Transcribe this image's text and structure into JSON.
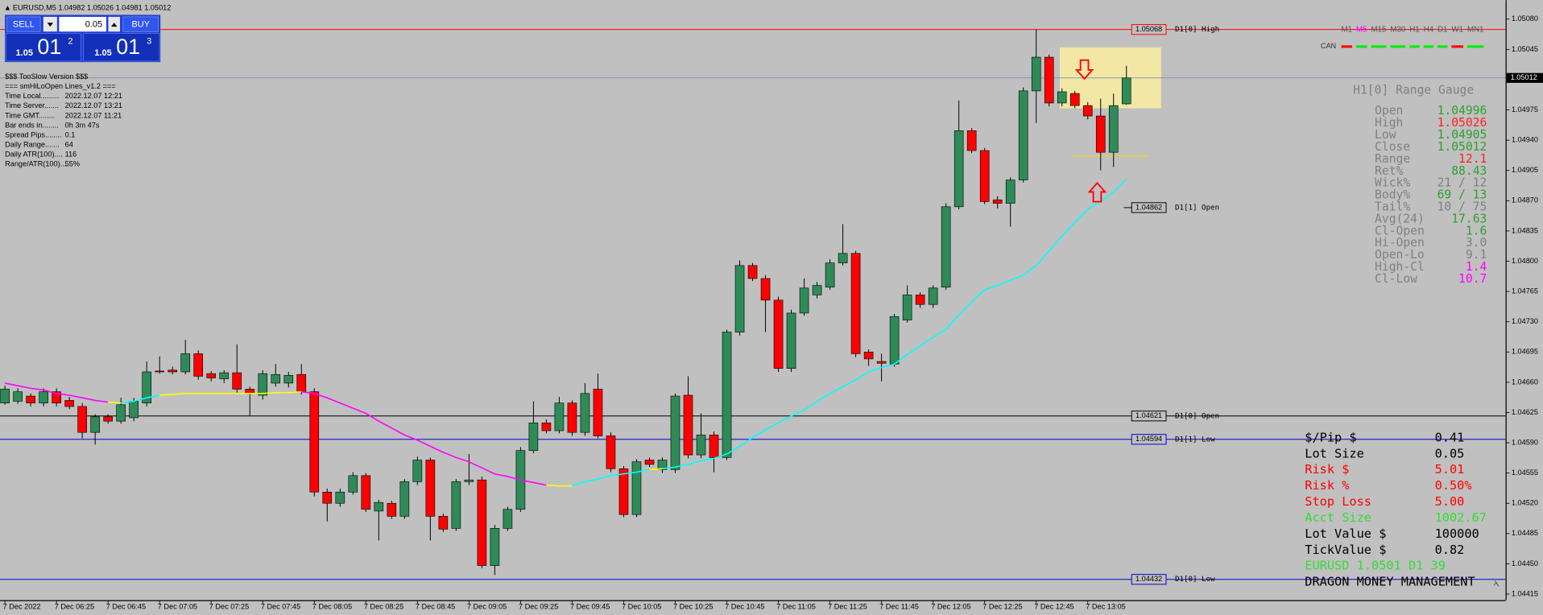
{
  "header": {
    "symbol_line": "EURUSD,M5  1.04982 1.05026 1.04981 1.05012"
  },
  "trade_panel": {
    "sell": "SELL",
    "buy": "BUY",
    "lot": "0.05",
    "bid": {
      "big": "1.05",
      "pips": "01",
      "point": "2"
    },
    "ask": {
      "big": "1.05",
      "pips": "01",
      "point": "3"
    }
  },
  "info_lines": [
    [
      "$$$ TooSlow Version $$$"
    ],
    [
      "=== smHiLoOpen Lines_v1.2 ==="
    ],
    [
      "Time Local.........",
      "2022.12.07 12:21"
    ],
    [
      "Time Server.......",
      "2022.12.07 13:21"
    ],
    [
      "Time GMT........",
      "2022.12.07 11:21"
    ],
    [
      "Bar ends in........",
      "0h 3m 47s"
    ],
    [
      "Spread Pips........",
      "0.1"
    ],
    [
      "Daily Range.......",
      "64"
    ],
    [
      "Daily ATR(100)....",
      "116"
    ],
    [
      "Range/ATR(100)....",
      "55%"
    ]
  ],
  "timeframes": {
    "items": [
      "M1",
      "M5",
      "M15",
      "M30",
      "H1",
      "H4",
      "D1",
      "W1",
      "MN1"
    ],
    "active": "M5",
    "color": "#555555",
    "active_color": "#ff00ff",
    "can_label": "CAN",
    "can_colors": [
      "#ff0000",
      "#00ee00",
      "#00ee00",
      "#00ee00",
      "#00ee00",
      "#00ee00",
      "#00ee00",
      "#ff0000",
      "#00ee00"
    ]
  },
  "range_gauge": {
    "title": "H1[0] Range Gauge",
    "label_color": "#808080",
    "rows": [
      {
        "label": "Open",
        "value": "1.04996",
        "color": "#2ea02e"
      },
      {
        "label": "High",
        "value": "1.05026",
        "color": "#ff2020"
      },
      {
        "label": "Low",
        "value": "1.04905",
        "color": "#2ea02e"
      },
      {
        "label": "Close",
        "value": "1.05012",
        "color": "#2ea02e"
      },
      {
        "label": "Range",
        "value": "12.1",
        "color": "#ff2020"
      },
      {
        "label": "Ret%",
        "value": "88.43",
        "color": "#2ea02e"
      },
      {
        "label": "Wick%",
        "value": "21 / 12",
        "color": "#808080"
      },
      {
        "label": "Body%",
        "value": "69 / 13",
        "color": "#2ea02e"
      },
      {
        "label": "Tail%",
        "value": "10 / 75",
        "color": "#808080"
      },
      {
        "label": "Avg(24)",
        "value": "17.63",
        "color": "#2ea02e"
      },
      {
        "label": "Cl-Open",
        "value": "1.6",
        "color": "#2ea02e"
      },
      {
        "label": "Hi-Open",
        "value": "3.0",
        "color": "#808080"
      },
      {
        "label": "Open-Lo",
        "value": "9.1",
        "color": "#808080"
      },
      {
        "label": "High-Cl",
        "value": "1.4",
        "color": "#ff00ff"
      },
      {
        "label": "Cl-Low",
        "value": "10.7",
        "color": "#ff00ff"
      }
    ]
  },
  "money_management": {
    "rows": [
      {
        "label": "$/Pip $",
        "value": "0.41",
        "color": "#000000"
      },
      {
        "label": "Lot Size",
        "value": "0.05",
        "color": "#000000"
      },
      {
        "label": "Risk $",
        "value": "5.01",
        "color": "#ff0000"
      },
      {
        "label": "Risk %",
        "value": "0.50%",
        "color": "#ff0000"
      },
      {
        "label": "Stop Loss",
        "value": "5.00",
        "color": "#ff0000"
      },
      {
        "label": "Acct Size",
        "value": "1002.67",
        "color": "#33dd33"
      },
      {
        "label": "Lot Value $",
        "value": "100000",
        "color": "#000000"
      },
      {
        "label": "TickValue $",
        "value": "0.82",
        "color": "#000000"
      }
    ],
    "footer_lines": [
      {
        "text": "EURUSD 1.0501 D1 39",
        "color": "#33dd33"
      },
      {
        "text": "DRAGON MONEY MANAGEMENT",
        "color": "#000000"
      }
    ]
  },
  "chart_data": {
    "type": "candlestick",
    "categories": [
      "7 Dec 2022",
      null,
      null,
      null,
      "7 Dec 06:25",
      null,
      null,
      null,
      "7 Dec 06:45",
      null,
      null,
      null,
      "7 Dec 07:05",
      null,
      null,
      null,
      "7 Dec 07:25",
      null,
      null,
      null,
      "7 Dec 07:45",
      null,
      null,
      null,
      "7 Dec 08:05",
      null,
      null,
      null,
      "7 Dec 08:25",
      null,
      null,
      null,
      "7 Dec 08:45",
      null,
      null,
      null,
      "7 Dec 09:05",
      null,
      null,
      null,
      "7 Dec 09:25",
      null,
      null,
      null,
      "7 Dec 09:45",
      null,
      null,
      null,
      "7 Dec 10:05",
      null,
      null,
      null,
      "7 Dec 10:25",
      null,
      null,
      null,
      "7 Dec 10:45",
      null,
      null,
      null,
      "7 Dec 11:05",
      null,
      null,
      null,
      "7 Dec 11:25",
      null,
      null,
      null,
      "7 Dec 11:45",
      null,
      null,
      null,
      "7 Dec 12:05",
      null,
      null,
      null,
      "7 Dec 12:25",
      null,
      null,
      null,
      "7 Dec 12:45",
      null,
      null,
      null,
      "7 Dec 13:05",
      null,
      null,
      null
    ],
    "open": [
      1.04636,
      1.04638,
      1.04644,
      1.04636,
      1.04649,
      1.04639,
      1.04632,
      1.04602,
      1.0462,
      1.04615,
      1.04619,
      1.04636,
      1.04673,
      1.04674,
      1.04672,
      1.04693,
      1.0467,
      1.04664,
      1.04671,
      1.04652,
      1.04645,
      1.04659,
      1.04659,
      1.04669,
      1.04649,
      1.04533,
      1.0452,
      1.04533,
      1.04552,
      1.04511,
      1.0452,
      1.04505,
      1.04545,
      1.0457,
      1.04505,
      1.04491,
      1.04545,
      1.04547,
      1.04448,
      1.04491,
      1.04513,
      1.04581,
      1.04613,
      1.04604,
      1.04636,
      1.04602,
      1.04652,
      1.04598,
      1.0456,
      1.04507,
      1.0457,
      1.04559,
      1.04559,
      1.04645,
      1.04576,
      1.04599,
      1.04573,
      1.04718,
      1.04795,
      1.0478,
      1.04755,
      1.04676,
      1.0474,
      1.04761,
      1.0477,
      1.04798,
      1.04809,
      1.04695,
      1.04684,
      1.04681,
      1.04732,
      1.04761,
      1.0475,
      1.0477,
      1.04863,
      1.04951,
      1.04928,
      1.04871,
      1.04867,
      1.04894,
      1.04997,
      1.05036,
      1.04983,
      1.04994,
      1.0498,
      1.04968,
      1.04926,
      1.04982
    ],
    "high": [
      1.04656,
      1.04653,
      1.04647,
      1.04653,
      1.04653,
      1.04643,
      1.04636,
      1.04623,
      1.04623,
      1.04642,
      1.04642,
      1.04684,
      1.0469,
      1.04678,
      1.04709,
      1.04697,
      1.04673,
      1.04674,
      1.04704,
      1.04655,
      1.04674,
      1.04681,
      1.04672,
      1.04681,
      1.04653,
      1.04537,
      1.04537,
      1.04556,
      1.04555,
      1.04524,
      1.04523,
      1.04548,
      1.04574,
      1.04573,
      1.04508,
      1.04548,
      1.04577,
      1.04551,
      1.04495,
      1.04516,
      1.04585,
      1.04638,
      1.04617,
      1.04643,
      1.04639,
      1.04659,
      1.0467,
      1.04602,
      1.04563,
      1.04571,
      1.04573,
      1.04573,
      1.04647,
      1.04667,
      1.04624,
      1.04603,
      1.04721,
      1.04801,
      1.04798,
      1.04784,
      1.04759,
      1.04744,
      1.0478,
      1.04776,
      1.04802,
      1.04843,
      1.04812,
      1.04698,
      1.04693,
      1.04739,
      1.04772,
      1.04764,
      1.04772,
      1.04867,
      1.04986,
      1.04954,
      1.04931,
      1.04875,
      1.04897,
      1.05001,
      1.05068,
      1.05039,
      1.05,
      1.04997,
      1.04984,
      1.04988,
      1.04994,
      1.05026
    ],
    "low": [
      1.04634,
      1.04635,
      1.04632,
      1.04632,
      1.04632,
      1.04629,
      1.04595,
      1.04588,
      1.04612,
      1.04612,
      1.04615,
      1.04632,
      1.0467,
      1.04669,
      1.04669,
      1.04663,
      1.04661,
      1.04659,
      1.04648,
      1.04621,
      1.0464,
      1.04655,
      1.04654,
      1.04646,
      1.04528,
      1.04499,
      1.04516,
      1.0453,
      1.0451,
      1.04477,
      1.04502,
      1.04502,
      1.04541,
      1.04477,
      1.04487,
      1.04488,
      1.04541,
      1.04445,
      1.04437,
      1.04488,
      1.0451,
      1.04578,
      1.04601,
      1.04601,
      1.04598,
      1.04598,
      1.04595,
      1.04556,
      1.04504,
      1.04504,
      1.04562,
      1.04555,
      1.04555,
      1.04572,
      1.04572,
      1.04556,
      1.0457,
      1.04714,
      1.04777,
      1.04718,
      1.04672,
      1.04672,
      1.04737,
      1.04757,
      1.04767,
      1.04795,
      1.04689,
      1.04679,
      1.04661,
      1.04678,
      1.04729,
      1.04746,
      1.04746,
      1.04767,
      1.0486,
      1.04925,
      1.04866,
      1.04861,
      1.0484,
      1.04891,
      1.0496,
      1.04979,
      1.04979,
      1.04977,
      1.04964,
      1.04905,
      1.04909,
      1.04981
    ],
    "close": [
      1.04652,
      1.04649,
      1.04636,
      1.04649,
      1.04636,
      1.04632,
      1.04602,
      1.0462,
      1.04615,
      1.04634,
      1.04638,
      1.04672,
      1.04672,
      1.04672,
      1.04693,
      1.04667,
      1.04665,
      1.04671,
      1.04652,
      1.04647,
      1.0467,
      1.04669,
      1.04668,
      1.04649,
      1.04533,
      1.0452,
      1.04533,
      1.04552,
      1.04513,
      1.04521,
      1.04505,
      1.04545,
      1.0457,
      1.04505,
      1.0449,
      1.04545,
      1.04547,
      1.04448,
      1.04491,
      1.04513,
      1.04581,
      1.04613,
      1.04604,
      1.04636,
      1.04602,
      1.04647,
      1.04598,
      1.0456,
      1.04507,
      1.04568,
      1.04565,
      1.0457,
      1.04644,
      1.04576,
      1.04599,
      1.04573,
      1.04718,
      1.04795,
      1.0478,
      1.04755,
      1.04676,
      1.0474,
      1.04769,
      1.04772,
      1.04798,
      1.04809,
      1.04693,
      1.04687,
      1.04682,
      1.04736,
      1.04761,
      1.0475,
      1.04769,
      1.04863,
      1.04951,
      1.04928,
      1.04869,
      1.04867,
      1.04894,
      1.04997,
      1.05036,
      1.04983,
      1.04996,
      1.0498,
      1.04968,
      1.04926,
      1.0498,
      1.05012
    ],
    "up_color": "#2e8b57",
    "down_color": "#ff0000",
    "wick_color": "#000000",
    "moving_average": {
      "colors": {
        "up": "#00ffff",
        "down": "#ff00ff",
        "flat": "#ffff00"
      },
      "values": [
        1.04659,
        1.04656,
        1.04653,
        1.04651,
        1.04647,
        1.04645,
        1.04642,
        1.04639,
        1.04637,
        1.04636,
        1.04638,
        1.04642,
        1.04645,
        1.04646,
        1.04647,
        1.04647,
        1.04647,
        1.04647,
        1.04647,
        1.04647,
        1.04647,
        1.04648,
        1.04648,
        1.04649,
        1.04647,
        1.04642,
        1.04636,
        1.0463,
        1.04624,
        1.04615,
        1.04607,
        1.04599,
        1.04593,
        1.04586,
        1.04579,
        1.04573,
        1.04568,
        1.04561,
        1.04554,
        1.04551,
        1.04547,
        1.04544,
        1.04541,
        1.0454,
        1.0454,
        1.04545,
        1.04548,
        1.04552,
        1.04554,
        1.04556,
        1.04559,
        1.0456,
        1.04562,
        1.04565,
        1.04569,
        1.04572,
        1.04577,
        1.04586,
        1.04596,
        1.04605,
        1.04613,
        1.04621,
        1.04628,
        1.04638,
        1.04647,
        1.04655,
        1.04663,
        1.04672,
        1.04677,
        1.04681,
        1.04692,
        1.04702,
        1.04712,
        1.04721,
        1.04738,
        1.04753,
        1.04767,
        1.04772,
        1.04778,
        1.04784,
        1.04795,
        1.04812,
        1.04829,
        1.04845,
        1.0486,
        1.04869,
        1.0488,
        1.04895
      ]
    },
    "ylim": [
      1.04408,
      1.05102
    ],
    "yticks": [
      {
        "value": 1.0508,
        "label": "1.05080"
      },
      {
        "value": 1.05045,
        "label": "1.05045"
      },
      {
        "value": 1.04975,
        "label": "1.04975"
      },
      {
        "value": 1.0494,
        "label": "1.04940"
      },
      {
        "value": 1.04905,
        "label": "1.04905"
      },
      {
        "value": 1.0487,
        "label": "1.04870"
      },
      {
        "value": 1.04835,
        "label": "1.04835"
      },
      {
        "value": 1.048,
        "label": "1.04800"
      },
      {
        "value": 1.04765,
        "label": "1.04765"
      },
      {
        "value": 1.0473,
        "label": "1.04730"
      },
      {
        "value": 1.04695,
        "label": "1.04695"
      },
      {
        "value": 1.0466,
        "label": "1.04660"
      },
      {
        "value": 1.04625,
        "label": "1.04625"
      },
      {
        "value": 1.0459,
        "label": "1.04590"
      },
      {
        "value": 1.04555,
        "label": "1.04555"
      },
      {
        "value": 1.0452,
        "label": "1.04520"
      },
      {
        "value": 1.04485,
        "label": "1.04485"
      },
      {
        "value": 1.0445,
        "label": "1.04450"
      },
      {
        "value": 1.04415,
        "label": "1.04415"
      }
    ],
    "levels": [
      {
        "label": "D1[0] High",
        "value": 1.05068,
        "color": "#ff0000",
        "extend": true
      },
      {
        "label": "D1[1] Open",
        "value": 1.04862,
        "color": "#000000",
        "extend": false
      },
      {
        "label": "D1[0] Open",
        "value": 1.04621,
        "color": "#000000",
        "extend": true
      },
      {
        "label": "D1[1] Low",
        "value": 1.04594,
        "color": "#0000cc",
        "extend": true
      },
      {
        "label": "D1[0] Low",
        "value": 1.04432,
        "color": "#0000cc",
        "extend": true
      }
    ],
    "last_price": {
      "value": 1.05012,
      "color": "#7890a8"
    }
  }
}
